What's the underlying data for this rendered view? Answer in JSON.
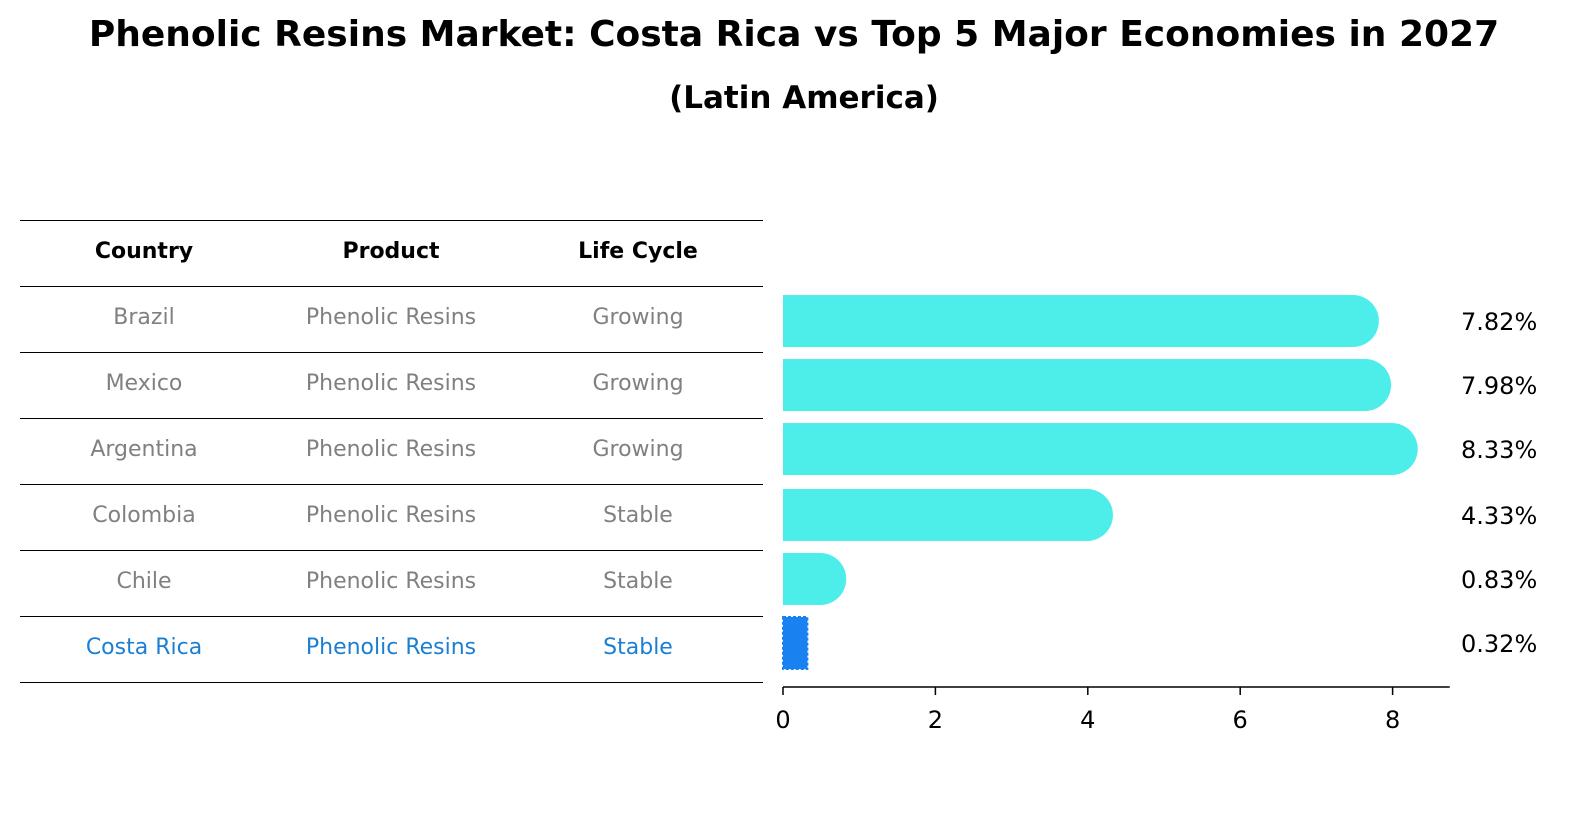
{
  "title": "Phenolic Resins Market: Costa Rica vs Top 5 Major Economies in 2027",
  "subtitle": "(Latin America)",
  "table": {
    "headers": [
      "Country",
      "Product",
      "Life Cycle"
    ],
    "rows": [
      {
        "country": "Brazil",
        "product": "Phenolic Resins",
        "life_cycle": "Growing"
      },
      {
        "country": "Mexico",
        "product": "Phenolic Resins",
        "life_cycle": "Growing"
      },
      {
        "country": "Argentina",
        "product": "Phenolic Resins",
        "life_cycle": "Growing"
      },
      {
        "country": "Colombia",
        "product": "Phenolic Resins",
        "life_cycle": "Stable"
      },
      {
        "country": "Chile",
        "product": "Phenolic Resins",
        "life_cycle": "Stable"
      },
      {
        "country": "Costa Rica",
        "product": "Phenolic Resins",
        "life_cycle": "Stable"
      }
    ],
    "highlight_color": "#1a7fd4",
    "text_color": "#808080"
  },
  "chart_data": {
    "type": "bar",
    "orientation": "horizontal",
    "categories": [
      "Brazil",
      "Mexico",
      "Argentina",
      "Colombia",
      "Chile",
      "Costa Rica"
    ],
    "values": [
      7.82,
      7.98,
      8.33,
      4.33,
      0.83,
      0.32
    ],
    "value_labels": [
      "7.82%",
      "7.98%",
      "8.33%",
      "4.33%",
      "0.83%",
      "0.32%"
    ],
    "xlim": [
      0,
      8.75
    ],
    "xticks": [
      0,
      2,
      4,
      6,
      8
    ],
    "xtick_labels": [
      "0",
      "2",
      "4",
      "6",
      "8"
    ],
    "bar_color": "#4deeea",
    "highlight_color": "#1a82f0",
    "highlight_index": 5,
    "grid": false
  }
}
